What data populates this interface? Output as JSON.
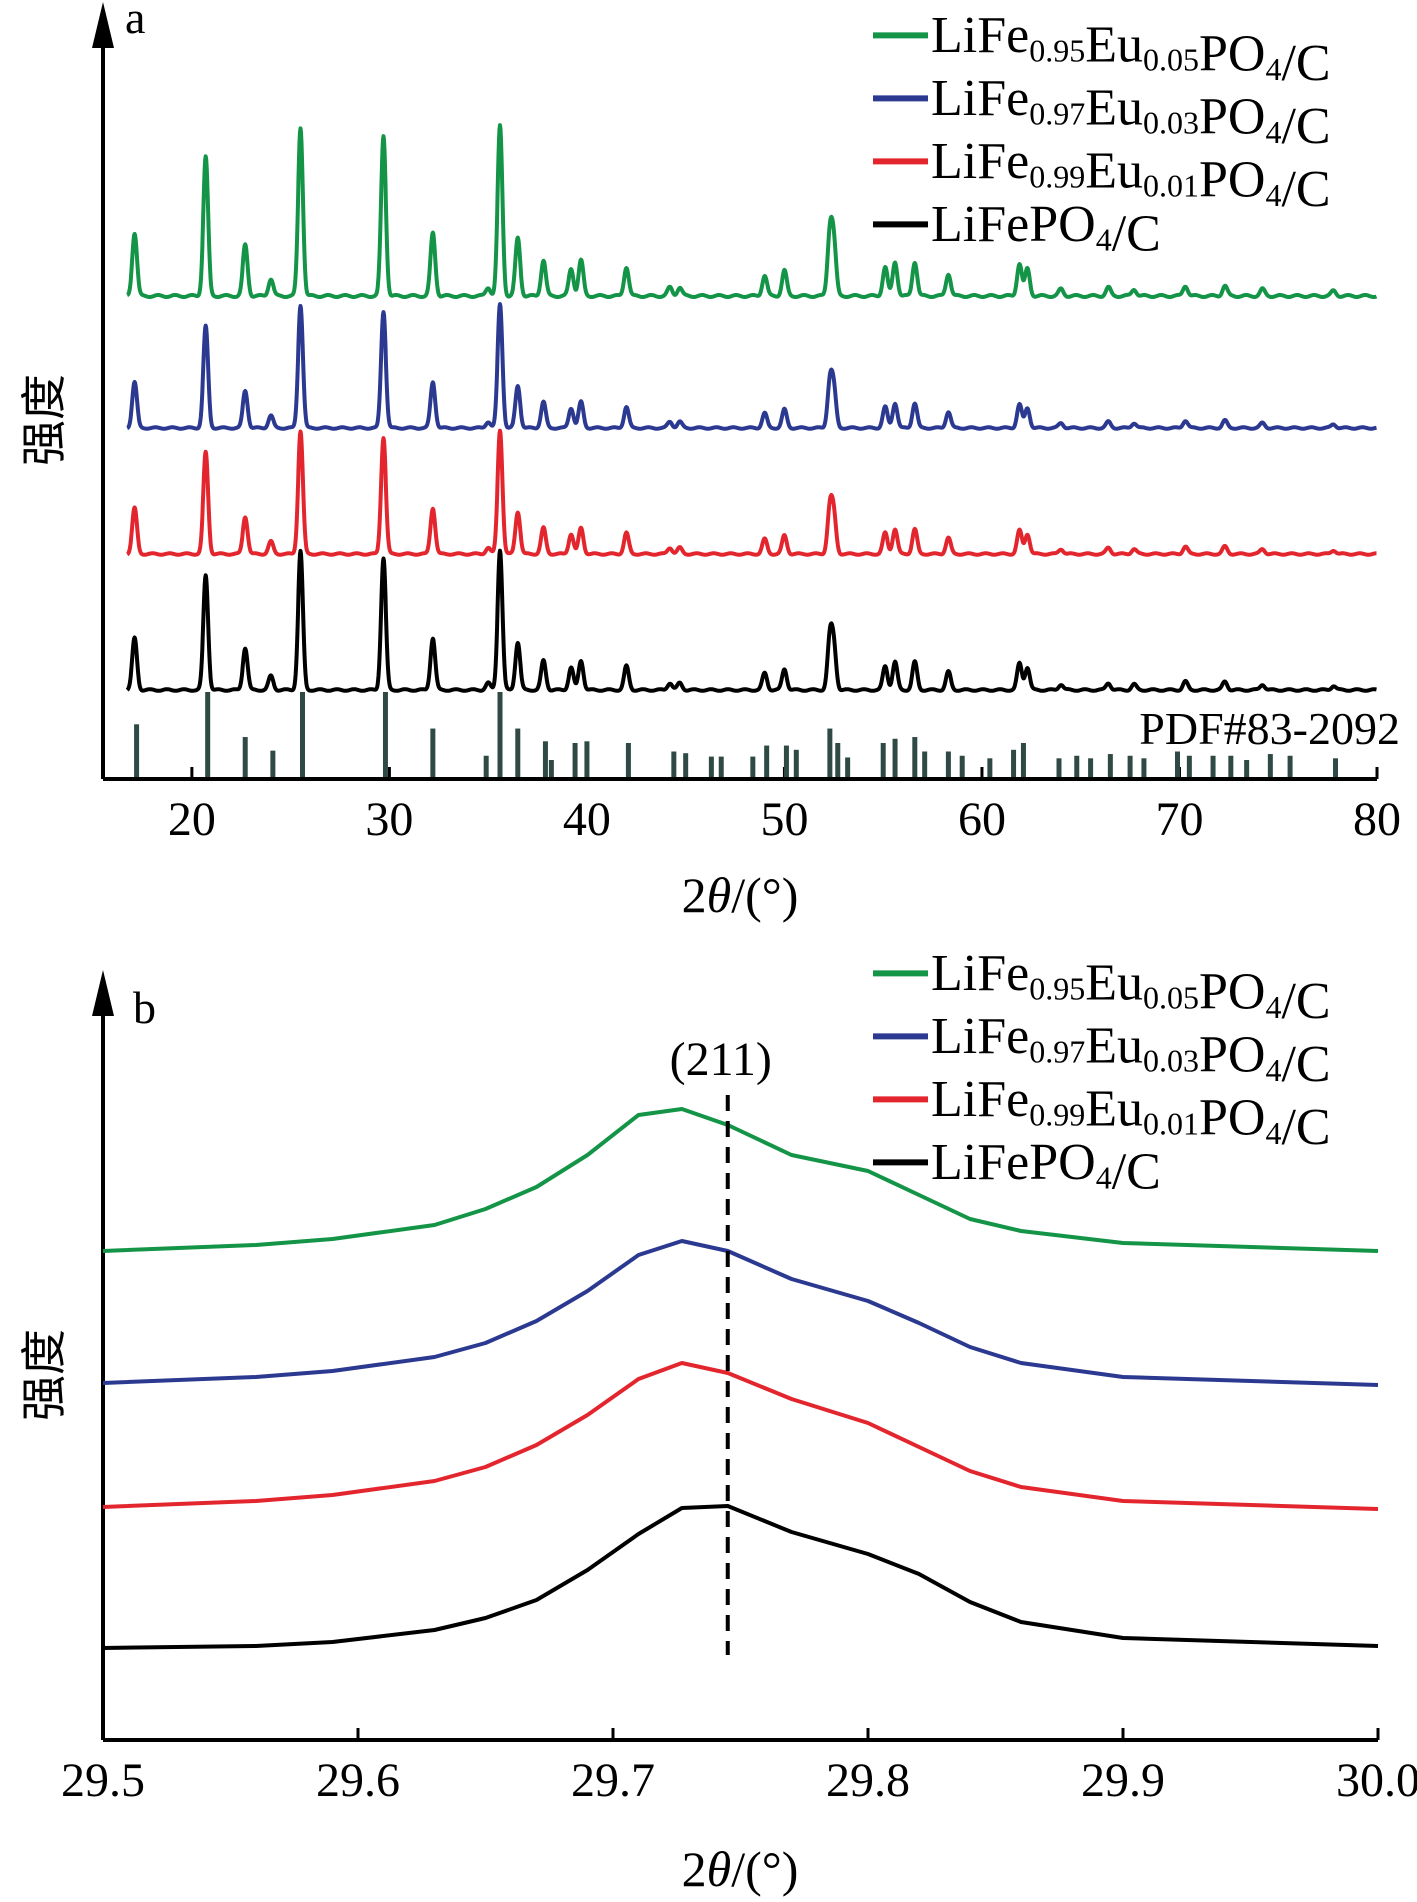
{
  "chart_data": [
    {
      "panel_label": "a",
      "type": "line",
      "xlabel_prefix": "2",
      "xlabel_symbol": "θ",
      "xlabel_unit": "/(°)",
      "ylabel": "强度",
      "xlim": [
        15.5,
        80
      ],
      "x_ticks": [
        20,
        30,
        40,
        50,
        60,
        70,
        80
      ],
      "x_tick_labels": [
        "20",
        "30",
        "40",
        "50",
        "60",
        "70",
        "80"
      ],
      "grid": false,
      "legend_position": "top-right",
      "series": [
        {
          "name": "LiFe0.95Eu0.05PO4/C",
          "color": "#139447",
          "baseline": 0.9,
          "scale": 1.0
        },
        {
          "name": "LiFe0.97Eu0.03PO4/C",
          "color": "#2b3990",
          "baseline": 0.9,
          "scale": 1.0
        },
        {
          "name": "LiFe0.99Eu0.01PO4/C",
          "color": "#e3262e",
          "baseline": 0.9,
          "scale": 1.0
        },
        {
          "name": "LiFePO4/C",
          "color": "#000000",
          "baseline": 0.9,
          "scale": 1.0
        }
      ],
      "peaks": [
        [
          17.1,
          0.37
        ],
        [
          20.7,
          0.82
        ],
        [
          22.7,
          0.3
        ],
        [
          24.0,
          0.1
        ],
        [
          25.5,
          0.99
        ],
        [
          29.7,
          0.94
        ],
        [
          32.2,
          0.37
        ],
        [
          35.0,
          0.05
        ],
        [
          35.6,
          1.0
        ],
        [
          36.5,
          0.34
        ],
        [
          37.8,
          0.21
        ],
        [
          39.2,
          0.16
        ],
        [
          39.7,
          0.21
        ],
        [
          42.0,
          0.17
        ],
        [
          44.2,
          0.05
        ],
        [
          44.7,
          0.05
        ],
        [
          49.0,
          0.12
        ],
        [
          50.0,
          0.15
        ],
        [
          52.3,
          0.36
        ],
        [
          52.5,
          0.3
        ],
        [
          55.1,
          0.17
        ],
        [
          55.6,
          0.2
        ],
        [
          56.6,
          0.2
        ],
        [
          58.3,
          0.13
        ],
        [
          61.9,
          0.19
        ],
        [
          62.3,
          0.16
        ],
        [
          64.0,
          0.04
        ],
        [
          66.4,
          0.05
        ],
        [
          67.7,
          0.04
        ],
        [
          70.3,
          0.06
        ],
        [
          72.3,
          0.06
        ],
        [
          74.2,
          0.04
        ],
        [
          77.8,
          0.03
        ]
      ],
      "reference": {
        "label": "PDF#83-2092",
        "lines": [
          [
            17.2,
            0.62
          ],
          [
            20.8,
            1.0
          ],
          [
            22.7,
            0.47
          ],
          [
            24.1,
            0.31
          ],
          [
            25.6,
            1.0
          ],
          [
            29.8,
            1.0
          ],
          [
            32.2,
            0.57
          ],
          [
            34.9,
            0.25
          ],
          [
            35.6,
            1.0
          ],
          [
            36.5,
            0.57
          ],
          [
            37.9,
            0.42
          ],
          [
            38.2,
            0.2
          ],
          [
            39.4,
            0.4
          ],
          [
            40.0,
            0.42
          ],
          [
            42.1,
            0.4
          ],
          [
            44.4,
            0.3
          ],
          [
            45.0,
            0.28
          ],
          [
            46.3,
            0.24
          ],
          [
            46.8,
            0.24
          ],
          [
            48.4,
            0.24
          ],
          [
            49.1,
            0.37
          ],
          [
            50.1,
            0.37
          ],
          [
            50.6,
            0.32
          ],
          [
            52.3,
            0.57
          ],
          [
            52.7,
            0.4
          ],
          [
            53.2,
            0.23
          ],
          [
            55.0,
            0.4
          ],
          [
            55.6,
            0.45
          ],
          [
            56.6,
            0.47
          ],
          [
            57.1,
            0.3
          ],
          [
            58.3,
            0.3
          ],
          [
            59.0,
            0.25
          ],
          [
            60.4,
            0.22
          ],
          [
            61.6,
            0.32
          ],
          [
            62.1,
            0.4
          ],
          [
            63.9,
            0.22
          ],
          [
            64.8,
            0.25
          ],
          [
            65.5,
            0.22
          ],
          [
            66.5,
            0.27
          ],
          [
            67.5,
            0.25
          ],
          [
            68.2,
            0.22
          ],
          [
            69.9,
            0.3
          ],
          [
            70.5,
            0.25
          ],
          [
            71.7,
            0.25
          ],
          [
            72.6,
            0.25
          ],
          [
            73.4,
            0.2
          ],
          [
            74.6,
            0.27
          ],
          [
            75.6,
            0.25
          ],
          [
            77.9,
            0.22
          ]
        ]
      }
    },
    {
      "panel_label": "b",
      "type": "line",
      "xlabel_prefix": "2",
      "xlabel_symbol": "θ",
      "xlabel_unit": "/(°)",
      "ylabel": "强度",
      "xlim": [
        29.5,
        30.0
      ],
      "x_ticks": [
        29.5,
        29.6,
        29.7,
        29.8,
        29.9,
        30.0
      ],
      "x_tick_labels": [
        "29.5",
        "29.6",
        "29.7",
        "29.8",
        "29.9",
        "30.0"
      ],
      "grid": false,
      "legend_position": "top-right",
      "annotation": {
        "text": "(211)",
        "x": 29.745
      },
      "x": [
        29.5,
        29.56,
        29.59,
        29.63,
        29.65,
        29.67,
        29.69,
        29.71,
        29.727,
        29.745,
        29.77,
        29.8,
        29.82,
        29.84,
        29.86,
        29.9,
        30.0
      ],
      "series": [
        {
          "name": "LiFe0.95Eu0.05PO4/C",
          "color": "#139447",
          "values": [
            0.04,
            0.07,
            0.1,
            0.17,
            0.25,
            0.36,
            0.52,
            0.72,
            0.75,
            0.67,
            0.52,
            0.44,
            0.32,
            0.2,
            0.14,
            0.08,
            0.04
          ]
        },
        {
          "name": "LiFe0.97Eu0.03PO4/C",
          "color": "#2b3990",
          "values": [
            0.03,
            0.06,
            0.09,
            0.16,
            0.23,
            0.34,
            0.49,
            0.67,
            0.74,
            0.69,
            0.55,
            0.44,
            0.33,
            0.21,
            0.13,
            0.06,
            0.02
          ]
        },
        {
          "name": "LiFe0.99Eu0.01PO4/C",
          "color": "#e3262e",
          "values": [
            0.04,
            0.07,
            0.1,
            0.17,
            0.24,
            0.35,
            0.5,
            0.68,
            0.76,
            0.71,
            0.58,
            0.46,
            0.34,
            0.22,
            0.14,
            0.07,
            0.03
          ]
        },
        {
          "name": "LiFePO4/C",
          "color": "#000000",
          "values": [
            0.02,
            0.03,
            0.05,
            0.11,
            0.17,
            0.26,
            0.41,
            0.59,
            0.72,
            0.73,
            0.6,
            0.49,
            0.39,
            0.25,
            0.15,
            0.07,
            0.03
          ]
        }
      ]
    }
  ]
}
